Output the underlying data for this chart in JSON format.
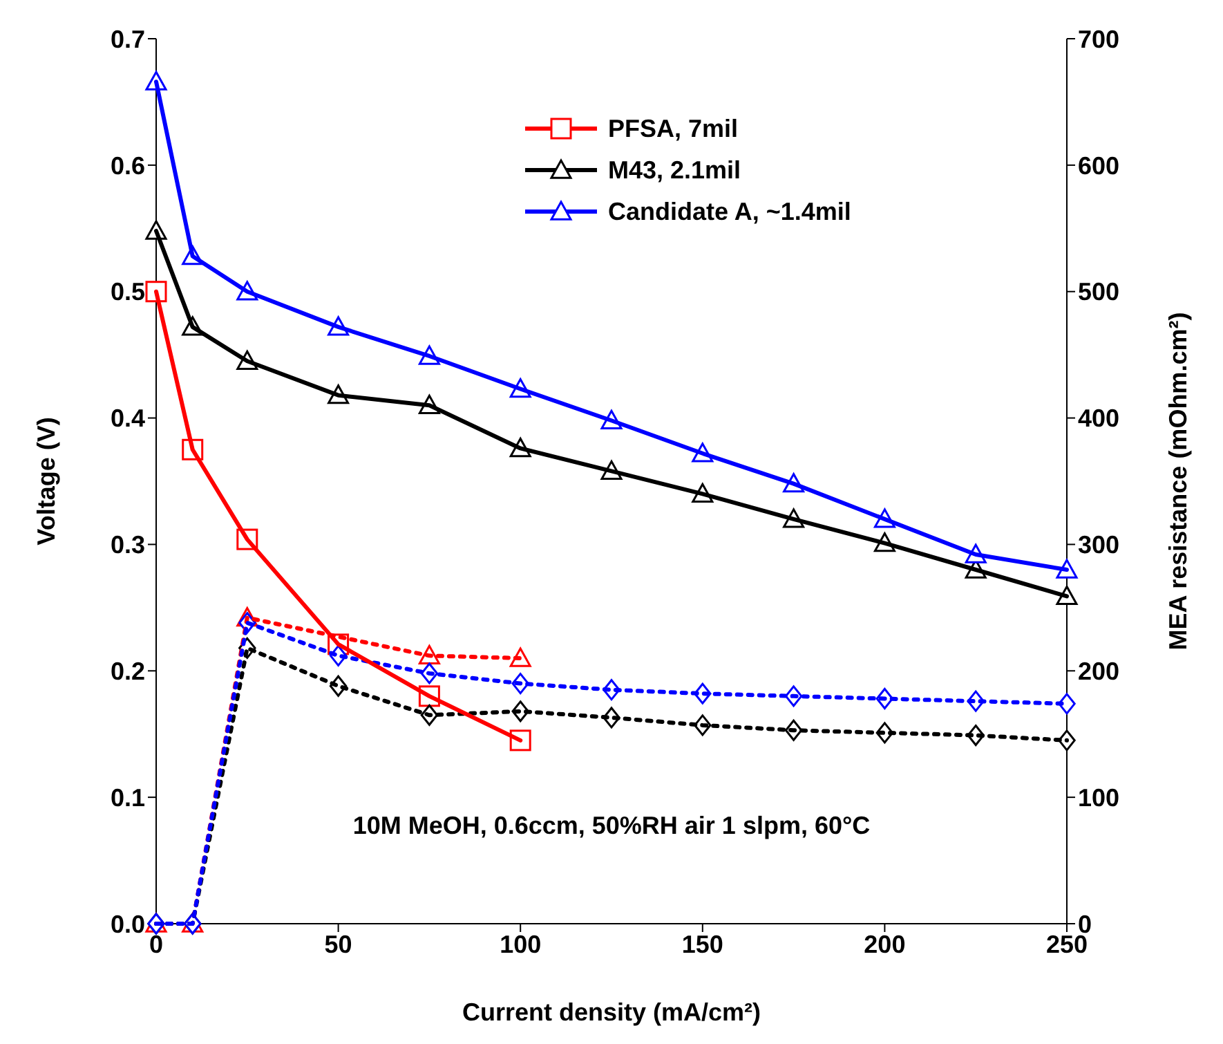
{
  "chart_data": {
    "type": "line",
    "xlabel": "Current density (mA/cm²)",
    "ylabel": "Voltage (V)",
    "y2label": "MEA resistance (mOhm.cm²)",
    "x": [
      0,
      10,
      25,
      50,
      75,
      100,
      125,
      150,
      175,
      200,
      225,
      250
    ],
    "xlim": [
      0,
      250
    ],
    "xticks": [
      0,
      50,
      100,
      150,
      200,
      250
    ],
    "ylim": [
      0,
      0.7
    ],
    "yticks": [
      {
        "value": 0,
        "label": "0.0"
      },
      0.1,
      0.2,
      0.3,
      0.4,
      0.5,
      0.6,
      0.7
    ],
    "y2lim": [
      0,
      700
    ],
    "y2ticks": [
      0,
      100,
      200,
      300,
      400,
      500,
      600,
      700
    ],
    "legend": "top",
    "grid": false,
    "series": [
      {
        "name": "PFSA, 7mil",
        "color": "#ff0000",
        "marker": "square",
        "line_style": "solid",
        "values": [
          0.5,
          0.375,
          0.304,
          0.221,
          0.18,
          0.145,
          null,
          null,
          null,
          null,
          null,
          null
        ]
      },
      {
        "name": "M43, 2.1mil",
        "color": "#000000",
        "marker": "triangle",
        "line_style": "solid",
        "values": [
          0.548,
          0.472,
          0.445,
          0.418,
          0.41,
          0.376,
          0.358,
          0.34,
          0.32,
          0.301,
          0.28,
          0.259
        ]
      },
      {
        "name": "Candidate A, ~1.4mil",
        "color": "#0000ff",
        "marker": "triangle",
        "line_style": "solid",
        "values": [
          0.666,
          0.528,
          0.5,
          0.472,
          0.449,
          0.423,
          0.398,
          0.372,
          0.348,
          0.32,
          0.292,
          0.28
        ]
      },
      {
        "color": "#ff0000",
        "marker": "triangle",
        "line_style": "dotted",
        "axis": "y2",
        "values": [
          0,
          0,
          242,
          null,
          212,
          210,
          null,
          null,
          null,
          null,
          null,
          null
        ]
      },
      {
        "color": "#000000",
        "marker": "diamond",
        "line_style": "dotted",
        "axis": "y2",
        "values": [
          0,
          0,
          218,
          188,
          165,
          168,
          163,
          157,
          153,
          151,
          149,
          145
        ]
      },
      {
        "color": "#0000ff",
        "marker": "diamond",
        "line_style": "dotted",
        "axis": "y2",
        "values": [
          0,
          0,
          238,
          212,
          198,
          190,
          185,
          182,
          180,
          178,
          176,
          174
        ]
      }
    ],
    "annotations": [
      "10M MeOH, 0.6ccm, 50%RH air 1 slpm, 60°C"
    ]
  }
}
